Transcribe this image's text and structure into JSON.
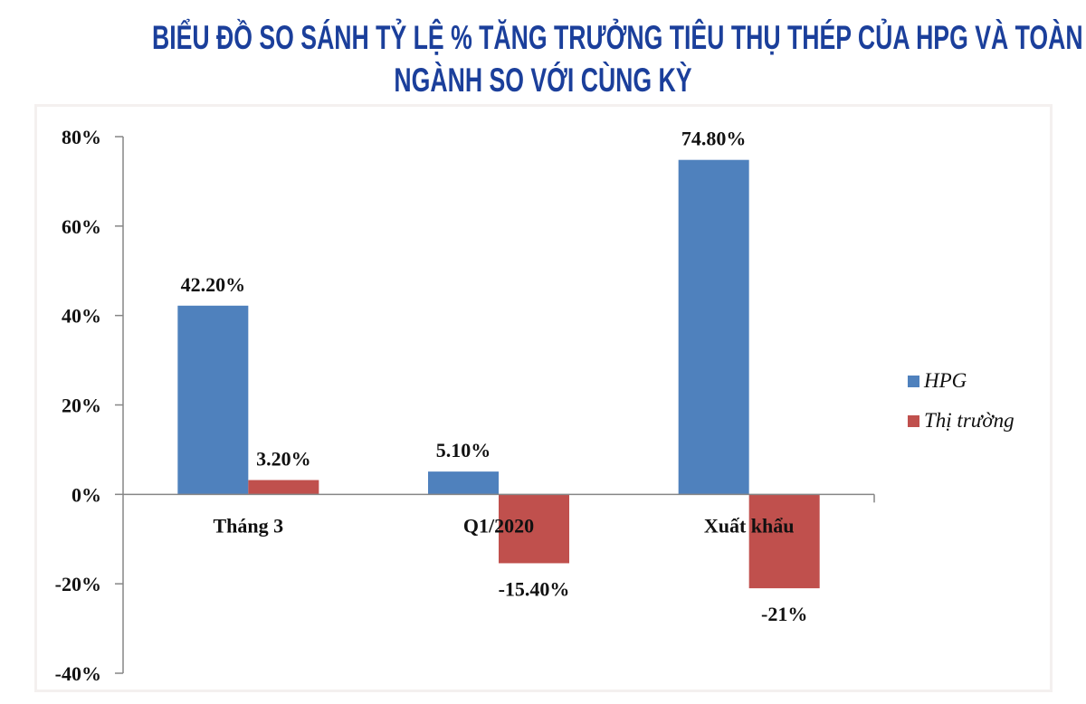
{
  "title": {
    "line1": "BIỂU ĐỒ SO SÁNH TỶ LỆ % TĂNG TRƯỞNG TIÊU THỤ THÉP CỦA HPG VÀ TOÀN",
    "line2": "NGÀNH SO VỚI CÙNG KỲ"
  },
  "colors": {
    "title": "#1b3f9b",
    "HPG": "#4f81bd",
    "Thi_truong": "#c0504d",
    "axis": "#868686"
  },
  "chart_data": {
    "type": "bar",
    "title": "BIỂU ĐỒ SO SÁNH TỶ LỆ % TĂNG TRƯỞNG TIÊU THỤ THÉP CỦA HPG VÀ TOÀN NGÀNH SO VỚI CÙNG KỲ",
    "xlabel": "",
    "ylabel": "",
    "categories": [
      "Tháng 3",
      "Q1/2020",
      "Xuất khẩu"
    ],
    "series": [
      {
        "name": "HPG",
        "values": [
          42.2,
          5.1,
          74.8
        ],
        "labels": [
          "42.20%",
          "5.10%",
          "74.80%"
        ],
        "color": "#4f81bd"
      },
      {
        "name": "Thị trường",
        "values": [
          3.2,
          -15.4,
          -21
        ],
        "labels": [
          "3.20%",
          "-15.40%",
          "-21%"
        ],
        "color": "#c0504d"
      }
    ],
    "ylim": [
      -40,
      80
    ],
    "yticks": [
      80,
      60,
      40,
      20,
      0,
      -20,
      -40
    ],
    "ytick_labels": [
      "80%",
      "60%",
      "40%",
      "20%",
      "0%",
      "-20%",
      "-40%"
    ],
    "grid": false,
    "legend_position": "right"
  }
}
